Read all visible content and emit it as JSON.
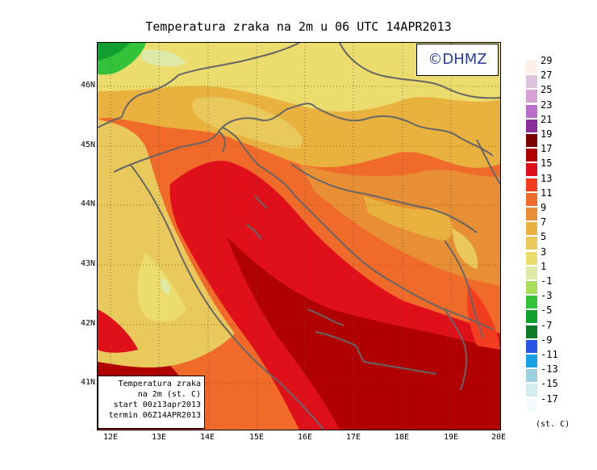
{
  "title": "Temperatura zraka na 2m u 06 UTC 14APR2013",
  "copyright": "©DHMZ",
  "info": {
    "line1": "Temperatura zraka",
    "line2": "na 2m (st. C)",
    "line3": "start 00z13apr2013",
    "line4": "termin 06Z14APR2013"
  },
  "axes": {
    "lat_ticks": [
      "46N",
      "45N",
      "44N",
      "43N",
      "42N",
      "41N"
    ],
    "lon_ticks": [
      "12E",
      "13E",
      "14E",
      "15E",
      "16E",
      "17E",
      "18E",
      "19E",
      "20E"
    ]
  },
  "legend": {
    "unit": "(st. C)",
    "labels": [
      "29",
      "27",
      "25",
      "23",
      "21",
      "19",
      "17",
      "15",
      "13",
      "11",
      "9",
      "7",
      "5",
      "3",
      "1",
      "-1",
      "-3",
      "-5",
      "-7",
      "-9",
      "-11",
      "-13",
      "-15",
      "-17"
    ],
    "colors": [
      "#fdf0e8",
      "#dcc4dc",
      "#d7a0d6",
      "#bb6ec8",
      "#8a2f9c",
      "#7a0000",
      "#b00000",
      "#e0101a",
      "#f23d20",
      "#f06a2a",
      "#e88e34",
      "#e9b23e",
      "#e9c95c",
      "#ecdc6e",
      "#dde9a6",
      "#a6dd5a",
      "#33c33a",
      "#10a030",
      "#0e7a2a",
      "#2a54e6",
      "#1aa0e6",
      "#9ad0e0",
      "#d2ecf0",
      "#f2fafc"
    ]
  },
  "map": {
    "zoom_level": "06 UTC"
  }
}
